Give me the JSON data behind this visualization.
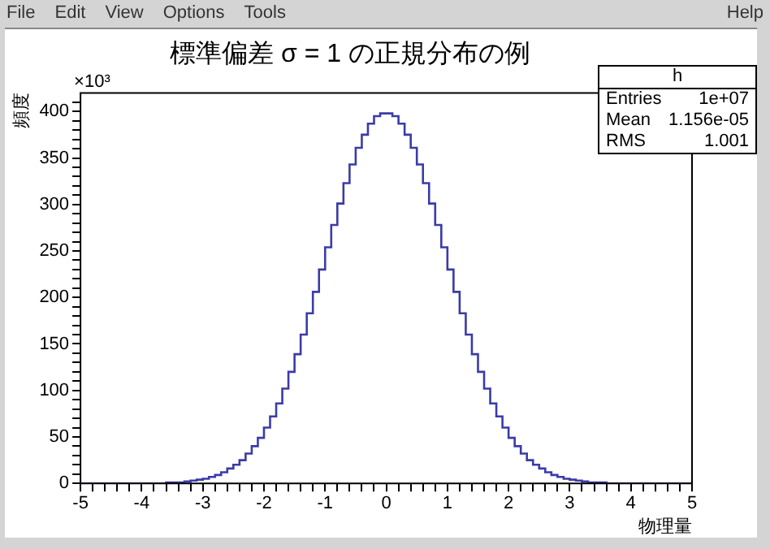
{
  "chart_data": {
    "type": "histogram",
    "title": "標準偏差 σ = 1 の正規分布の例",
    "xlabel": "物理量",
    "ylabel": "頻度",
    "annotations": [
      "File",
      "Edit",
      "View",
      "Options",
      "Tools",
      "Help",
      "h",
      "Entries",
      "1e+07",
      "Mean",
      "1.156e-05",
      "RMS",
      "1.001",
      "×10³"
    ],
    "bins": [
      -5,
      -4.9,
      -4.8,
      -4.7,
      -4.6,
      -4.5,
      -4.4,
      -4.3,
      -4.2,
      -4.1,
      -4,
      -3.9,
      -3.8,
      -3.7,
      -3.6,
      -3.5,
      -3.4,
      -3.3,
      -3.2,
      -3.1,
      -3,
      -2.9,
      -2.8,
      -2.7,
      -2.6,
      -2.5,
      -2.4,
      -2.3,
      -2.2,
      -2.1,
      -2,
      -1.9,
      -1.8,
      -1.7,
      -1.6,
      -1.5,
      -1.4,
      -1.3,
      -1.2,
      -1.1,
      -1,
      -0.9,
      -0.8,
      -0.7,
      -0.6,
      -0.5,
      -0.4,
      -0.3,
      -0.2,
      -0.1,
      0,
      0.1,
      0.2,
      0.3,
      0.4,
      0.5,
      0.6,
      0.7,
      0.8,
      0.9,
      1,
      1.1,
      1.2,
      1.3,
      1.4,
      1.5,
      1.6,
      1.7,
      1.8,
      1.9,
      2,
      2.1,
      2.2,
      2.3,
      2.4,
      2.5,
      2.6,
      2.7,
      2.8,
      2.9,
      3,
      3.1,
      3.2,
      3.3,
      3.4,
      3.5,
      3.6,
      3.7,
      3.8,
      3.9,
      4,
      4.1,
      4.2,
      4.3,
      4.4,
      4.5,
      4.6,
      4.7,
      4.8,
      4.9,
      5
    ],
    "values": [
      0,
      0,
      0,
      0,
      0,
      0,
      0,
      0,
      0,
      0,
      0,
      0,
      0,
      0,
      1,
      1,
      1,
      2,
      3,
      4,
      5,
      7,
      9,
      12,
      16,
      20,
      25,
      32,
      40,
      49,
      60,
      72,
      86,
      102,
      120,
      139,
      160,
      183,
      206,
      230,
      254,
      278,
      301,
      323,
      343,
      361,
      375,
      387,
      395,
      398,
      398,
      395,
      387,
      375,
      361,
      343,
      323,
      301,
      278,
      254,
      230,
      206,
      183,
      160,
      139,
      120,
      102,
      86,
      72,
      60,
      49,
      40,
      32,
      25,
      20,
      16,
      12,
      9,
      7,
      5,
      4,
      3,
      2,
      1,
      1,
      1,
      0,
      0,
      0,
      0,
      0,
      0,
      0,
      0,
      0,
      0,
      0,
      0,
      0,
      0
    ],
    "color": "#3b3ba8",
    "xlim": [
      -5,
      5
    ],
    "xticks": [
      -5,
      {
        "value": -4.8,
        "label": null
      },
      {
        "value": -4.6,
        "label": null
      },
      {
        "value": -4.4,
        "label": null
      },
      {
        "value": -4.2,
        "label": null
      },
      -4,
      {
        "value": -3.8,
        "label": null
      },
      {
        "value": -3.6,
        "label": null
      },
      {
        "value": -3.4,
        "label": null
      },
      {
        "value": -3.2,
        "label": null
      },
      -3,
      {
        "value": -2.8,
        "label": null
      },
      {
        "value": -2.6,
        "label": null
      },
      {
        "value": -2.4,
        "label": null
      },
      {
        "value": -2.2,
        "label": null
      },
      -2,
      {
        "value": -1.8,
        "label": null
      },
      {
        "value": -1.6,
        "label": null
      },
      {
        "value": -1.4,
        "label": null
      },
      {
        "value": -1.2,
        "label": null
      },
      -1,
      {
        "value": -0.8,
        "label": null
      },
      {
        "value": -0.6,
        "label": null
      },
      {
        "value": -0.4,
        "label": null
      },
      {
        "value": -0.2,
        "label": null
      },
      0,
      {
        "value": 0.2,
        "label": null
      },
      {
        "value": 0.4,
        "label": null
      },
      {
        "value": 0.6,
        "label": null
      },
      {
        "value": 0.8,
        "label": null
      },
      1,
      {
        "value": 1.2,
        "label": null
      },
      {
        "value": 1.4,
        "label": null
      },
      {
        "value": 1.6,
        "label": null
      },
      {
        "value": 1.8,
        "label": null
      },
      2,
      {
        "value": 2.2,
        "label": null
      },
      {
        "value": 2.4,
        "label": null
      },
      {
        "value": 2.6,
        "label": null
      },
      {
        "value": 2.8,
        "label": null
      },
      3,
      {
        "value": 3.2,
        "label": null
      },
      {
        "value": 3.4,
        "label": null
      },
      {
        "value": 3.6,
        "label": null
      },
      {
        "value": 3.8,
        "label": null
      },
      4,
      {
        "value": 4.2,
        "label": null
      },
      {
        "value": 4.4,
        "label": null
      },
      {
        "value": 4.6,
        "label": null
      },
      {
        "value": 4.8,
        "label": null
      },
      5
    ],
    "ylim": [
      0,
      420
    ],
    "yticks": [
      0,
      {
        "value": 10,
        "label": null
      },
      {
        "value": 20,
        "label": null
      },
      {
        "value": 30,
        "label": null
      },
      {
        "value": 40,
        "label": null
      },
      50,
      {
        "value": 60,
        "label": null
      },
      {
        "value": 70,
        "label": null
      },
      {
        "value": 80,
        "label": null
      },
      {
        "value": 90,
        "label": null
      },
      100,
      {
        "value": 110,
        "label": null
      },
      {
        "value": 120,
        "label": null
      },
      {
        "value": 130,
        "label": null
      },
      {
        "value": 140,
        "label": null
      },
      150,
      {
        "value": 160,
        "label": null
      },
      {
        "value": 170,
        "label": null
      },
      {
        "value": 180,
        "label": null
      },
      {
        "value": 190,
        "label": null
      },
      200,
      {
        "value": 210,
        "label": null
      },
      {
        "value": 220,
        "label": null
      },
      {
        "value": 230,
        "label": null
      },
      {
        "value": 240,
        "label": null
      },
      250,
      {
        "value": 260,
        "label": null
      },
      {
        "value": 270,
        "label": null
      },
      {
        "value": 280,
        "label": null
      },
      {
        "value": 290,
        "label": null
      },
      300,
      {
        "value": 310,
        "label": null
      },
      {
        "value": 320,
        "label": null
      },
      {
        "value": 330,
        "label": null
      },
      {
        "value": 340,
        "label": null
      },
      350,
      {
        "value": 360,
        "label": null
      },
      {
        "value": 370,
        "label": null
      },
      {
        "value": 380,
        "label": null
      },
      {
        "value": 390,
        "label": null
      },
      400,
      {
        "value": 410,
        "label": null
      }
    ]
  }
}
